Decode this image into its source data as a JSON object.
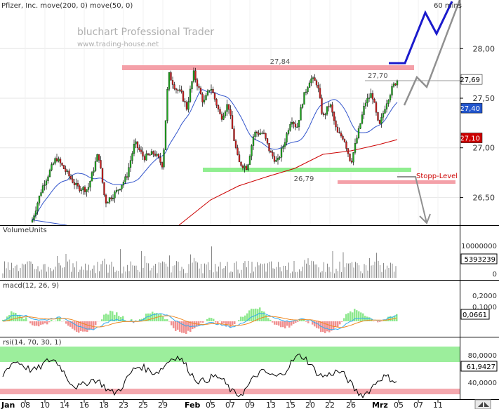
{
  "header": {
    "title": "Pfizer, Inc. move(200, 0) move(50, 0)",
    "timeframe": "60 mins",
    "brand": "bluchart Professional Trader",
    "website": "www.trading-house.net"
  },
  "chart_data": [
    {
      "type": "candlestick",
      "panel": "price",
      "y_ticks": [
        "28,00",
        "27,50",
        "27,00",
        "26,50"
      ],
      "ylim": [
        26.22,
        28.49
      ],
      "series": [
        {
          "name": "move(200, 0)",
          "color": "#cc0000"
        },
        {
          "name": "move(50, 0)",
          "color": "#3355cc"
        }
      ],
      "annotations": {
        "resistance": {
          "value": 27.84,
          "label": "27,84",
          "color": "#f4a0a8"
        },
        "support": {
          "value": 26.79,
          "label": "26,79",
          "color": "#90ee90"
        },
        "stop": {
          "value": 26.68,
          "label": "Stopp-Level",
          "color": "#f4a0a8"
        },
        "last_high": {
          "value": 27.7,
          "label": "27,70"
        }
      },
      "price_tags": [
        {
          "label": "27,69",
          "value": 27.69,
          "bg": "#ffffff",
          "fg": "#000000"
        },
        {
          "label": "27,40",
          "value": 27.4,
          "bg": "#2255cc",
          "fg": "#ffffff"
        },
        {
          "label": "27,10",
          "value": 27.1,
          "bg": "#cc0000",
          "fg": "#ffffff"
        }
      ],
      "scenario_colors": [
        "#1a1acc",
        "#909090"
      ]
    },
    {
      "type": "bar",
      "panel": "volume",
      "title": "VolumeUnits",
      "y_ticks": [
        "10000000",
        "0"
      ],
      "ylim": [
        0,
        11500000
      ],
      "last_label": "5393239"
    },
    {
      "type": "line",
      "panel": "macd",
      "title": "macd(12, 26, 9)",
      "y_ticks": [
        "0,2000",
        "0,1000"
      ],
      "ylim": [
        -0.18,
        0.26
      ],
      "last_label": "0,0661",
      "colors": {
        "macd": "#33aaee",
        "signal": "#ee8822",
        "hist_pos": "#8ee88e",
        "hist_neg": "#f09090"
      }
    },
    {
      "type": "line",
      "panel": "rsi",
      "title": "rsi(14, 70, 30, 1)",
      "y_ticks": [
        "80,0000",
        "40,0000"
      ],
      "ylim": [
        25,
        95
      ],
      "zones": {
        "upper": 70,
        "lower": 30
      },
      "last_label": "61,9427"
    }
  ],
  "x_axis": {
    "ticks": [
      "08",
      "10",
      "14",
      "16",
      "18",
      "23",
      "25",
      "29",
      "05",
      "07",
      "09",
      "13",
      "15",
      "20",
      "22",
      "26",
      "05",
      "07",
      "11"
    ],
    "months": [
      "Jan",
      "Feb",
      "Mrz"
    ]
  },
  "icons": {
    "scroll": "scroll-arrows-icon"
  }
}
